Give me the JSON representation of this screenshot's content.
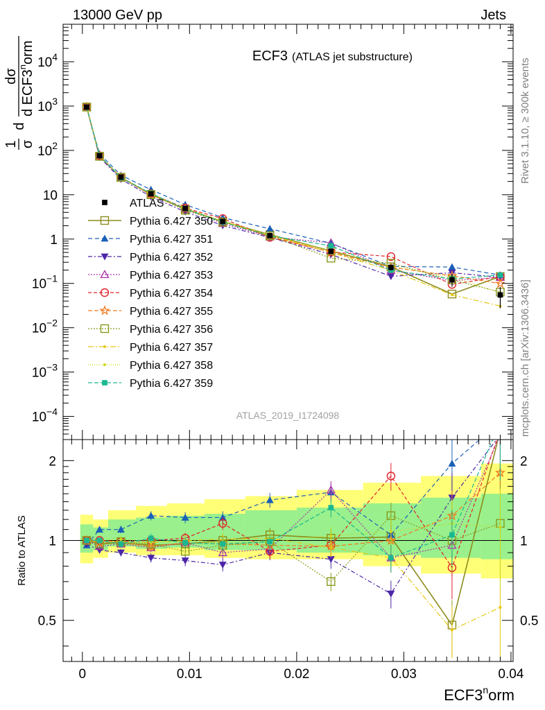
{
  "header": {
    "left": "13000 GeV pp",
    "right": "Jets"
  },
  "side_labels": {
    "rivet": "Rivet 3.1.10, ≥ 300k events",
    "mcplots": "mcplots.cern.ch [arXiv:1306.3436]"
  },
  "chart_data": {
    "type": "line",
    "title": "ECF3",
    "subtitle": "(ATLAS jet substructure)",
    "watermark": "ATLAS_2019_I1724098",
    "xlabel": "ECF3norm",
    "xlabel_parts": {
      "base": "ECF3",
      "sup": "n",
      "rest": "orm"
    },
    "ylabel": "1/σ dσ/d ECF3norm",
    "ylabel_parts": {
      "frac1_num": "1",
      "frac1_den": "σ",
      "d": "d",
      "frac2_num": "dσ",
      "frac2_den": "d ECF3",
      "sup": "n",
      "rest": "orm"
    },
    "ratio_ylabel": "Ratio to ATLAS",
    "xlim": [
      -0.0018,
      0.0402
    ],
    "ylim_log": [
      3e-05,
      70000
    ],
    "ratio_ylim": [
      0.35,
      2.4
    ],
    "y_scale": "log",
    "grid": false,
    "legend_position": "center-left",
    "x_ticks": [
      0,
      0.01,
      0.02,
      0.03,
      0.04
    ],
    "x_tick_labels": [
      "0",
      "0.01",
      "0.02",
      "0.03",
      "0.04"
    ],
    "y_ticks": [
      {
        "label": "10",
        "exp": "4"
      },
      {
        "label": "10",
        "exp": "3"
      },
      {
        "label": "10",
        "exp": "2"
      },
      {
        "label": "10",
        "exp": ""
      },
      {
        "label": "1",
        "exp": ""
      },
      {
        "label": "10",
        "exp": "−1"
      },
      {
        "label": "10",
        "exp": "−2"
      },
      {
        "label": "10",
        "exp": "−3"
      },
      {
        "label": "10",
        "exp": "−4"
      }
    ],
    "ratio_ticks": [
      0.5,
      1,
      2
    ],
    "ratio_tick_labels": [
      "0.5",
      "1",
      "2"
    ],
    "x": [
      0.0004,
      0.0016,
      0.0036,
      0.0064,
      0.0096,
      0.0131,
      0.0175,
      0.0232,
      0.0288,
      0.0345,
      0.039
    ],
    "bin_edges": [
      -0.0002,
      0.001,
      0.0024,
      0.005,
      0.0079,
      0.0114,
      0.0152,
      0.02,
      0.0262,
      0.0316,
      0.0372,
      0.0402
    ],
    "band_total": [
      [
        0.82,
        1.25
      ],
      [
        0.86,
        1.2
      ],
      [
        0.9,
        1.3
      ],
      [
        0.88,
        1.35
      ],
      [
        0.88,
        1.38
      ],
      [
        0.86,
        1.43
      ],
      [
        0.85,
        1.47
      ],
      [
        0.85,
        1.55
      ],
      [
        0.8,
        1.65
      ],
      [
        0.75,
        1.75
      ],
      [
        0.72,
        1.95
      ]
    ],
    "band_stat": [
      [
        0.9,
        1.15
      ],
      [
        0.92,
        1.12
      ],
      [
        0.95,
        1.2
      ],
      [
        0.93,
        1.22
      ],
      [
        0.94,
        1.24
      ],
      [
        0.92,
        1.26
      ],
      [
        0.92,
        1.3
      ],
      [
        0.9,
        1.33
      ],
      [
        0.88,
        1.38
      ],
      [
        0.86,
        1.45
      ],
      [
        0.85,
        1.5
      ]
    ],
    "data": {
      "name": "ATLAS",
      "values": [
        950,
        76,
        25,
        10.5,
        4.9,
        2.5,
        1.2,
        0.53,
        0.23,
        0.12,
        0.055
      ],
      "errors": [
        0.02,
        0.03,
        0.04,
        0.05,
        0.06,
        0.07,
        0.08,
        0.1,
        0.15,
        0.3,
        0.5
      ]
    },
    "series": [
      {
        "name": "Pythia 6.427 350",
        "color": "#8c8c1c",
        "dash": "",
        "marker": "square-open",
        "width": 1.6,
        "ratio": [
          1.0,
          0.97,
          0.98,
          0.96,
          0.97,
          1.0,
          1.05,
          1.02,
          1.03,
          0.48,
          2.6
        ]
      },
      {
        "name": "Pythia 6.427 351",
        "color": "#1a5fb8",
        "dash": "6,4",
        "marker": "triangle-up",
        "width": 1.2,
        "ratio": [
          0.96,
          1.1,
          1.1,
          1.24,
          1.22,
          1.22,
          1.42,
          1.52,
          1.05,
          1.95,
          2.8
        ]
      },
      {
        "name": "Pythia 6.427 352",
        "color": "#4c26a8",
        "dash": "6,3,2,3",
        "marker": "triangle-down",
        "width": 1.2,
        "ratio": [
          0.97,
          0.92,
          0.9,
          0.86,
          0.84,
          0.81,
          0.9,
          0.85,
          0.63,
          1.45,
          2.5
        ]
      },
      {
        "name": "Pythia 6.427 353",
        "color": "#a833a8",
        "dash": "2,2",
        "marker": "triangle-up-open",
        "width": 1.2,
        "ratio": [
          1.0,
          0.95,
          0.97,
          0.94,
          0.98,
          0.9,
          0.93,
          1.55,
          0.86,
          0.96,
          2.5
        ]
      },
      {
        "name": "Pythia 6.427 354",
        "color": "#e0202a",
        "dash": "5,3",
        "marker": "circle-open",
        "width": 1.2,
        "ratio": [
          1.0,
          1.0,
          0.99,
          1.0,
          1.02,
          1.16,
          0.91,
          0.96,
          1.75,
          0.79,
          2.6
        ]
      },
      {
        "name": "Pythia 6.427 355",
        "color": "#f07a20",
        "dash": "6,3",
        "marker": "star-open",
        "width": 1.2,
        "ratio": [
          1.0,
          0.98,
          0.98,
          0.95,
          0.98,
          0.97,
          0.96,
          0.95,
          1.0,
          1.24,
          1.8
        ]
      },
      {
        "name": "Pythia 6.427 356",
        "color": "#8a9a1e",
        "dash": "2,2",
        "marker": "square-open",
        "width": 1.2,
        "ratio": [
          1.0,
          0.97,
          0.99,
          0.97,
          0.91,
          0.96,
          0.99,
          0.7,
          1.24,
          1.0,
          1.16
        ]
      },
      {
        "name": "Pythia 6.427 357",
        "color": "#e6c814",
        "dash": "8,3,2,3",
        "marker": "dot",
        "width": 1.2,
        "ratio": [
          1.0,
          0.99,
          0.99,
          0.98,
          1.0,
          1.01,
          1.02,
          0.94,
          0.86,
          0.46,
          0.56
        ]
      },
      {
        "name": "Pythia 6.427 358",
        "color": "#cfd81c",
        "dash": "1,2",
        "marker": "dot",
        "width": 1.2,
        "ratio": [
          1.0,
          1.0,
          1.01,
          0.99,
          0.99,
          0.98,
          1.0,
          1.04,
          1.08,
          1.16,
          1.12
        ]
      },
      {
        "name": "Pythia 6.427 359",
        "color": "#1ab890",
        "dash": "6,3",
        "marker": "square",
        "width": 1.2,
        "ratio": [
          1.0,
          1.0,
          0.97,
          1.02,
          0.98,
          0.97,
          0.99,
          1.33,
          0.86,
          1.05,
          2.8
        ]
      }
    ]
  }
}
